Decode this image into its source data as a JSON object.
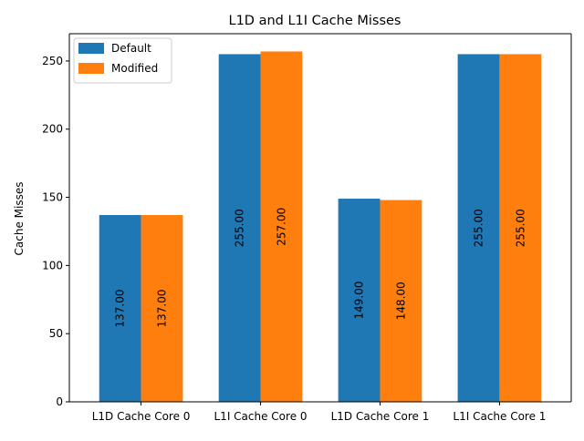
{
  "chart_data": {
    "type": "bar",
    "title": "L1D and L1I Cache Misses",
    "xlabel": "",
    "ylabel": "Cache Misses",
    "categories": [
      "L1D Cache Core 0",
      "L1I Cache Core 0",
      "L1D Cache Core 1",
      "L1I Cache Core 1"
    ],
    "series": [
      {
        "name": "Default",
        "color": "#1f77b4",
        "values": [
          137.0,
          255.0,
          149.0,
          255.0
        ],
        "labels": [
          "137.00",
          "255.00",
          "149.00",
          "255.00"
        ]
      },
      {
        "name": "Modified",
        "color": "#ff7f0e",
        "values": [
          137.0,
          257.0,
          148.0,
          255.0
        ],
        "labels": [
          "137.00",
          "257.00",
          "148.00",
          "255.00"
        ]
      }
    ],
    "ylim": [
      0,
      270
    ],
    "yticks": [
      0,
      50,
      100,
      150,
      200,
      250
    ],
    "ytick_labels": [
      "0",
      "50",
      "100",
      "150",
      "200",
      "250"
    ],
    "grid": false,
    "legend_position": "top-left"
  }
}
